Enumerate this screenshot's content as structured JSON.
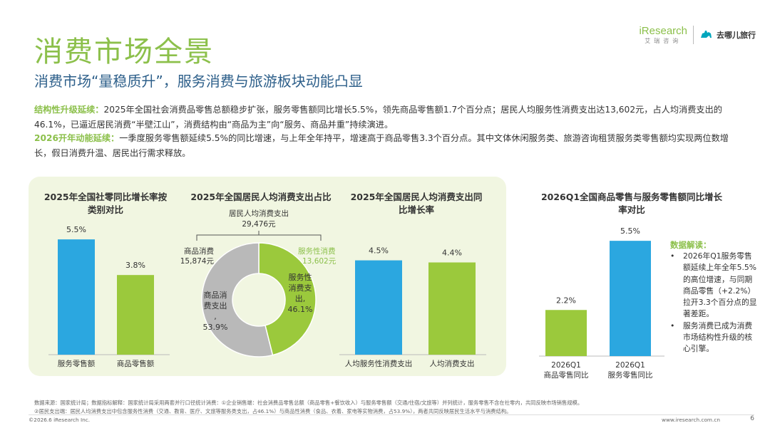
{
  "header": {
    "title": "消费市场全景",
    "subtitle": "消费市场“量稳质升”，服务消费与旅游板块动能凸显",
    "logo_ir": "iResearch",
    "logo_ir_sub": "艾瑞咨询",
    "logo_qunar": "去哪儿旅行"
  },
  "paragraphs": [
    {
      "label": "结构性升级延续：",
      "text": "2025年全国社会消费品零售总额稳步扩张，服务零售额同比增长5.5%，领先商品零售额1.7个百分点；居民人均服务性消费支出达13,602元，占人均消费支出的46.1%，已逼近居民消费“半壁江山”，消费结构由“商品为主”向“服务、商品并重”持续演进。"
    },
    {
      "label": "2026开年动能延续：",
      "text": "一季度服务零售额延续5.5%的同比增速，与上年全年持平，增速高于商品零售3.3个百分点。其中文体休闲服务类、旅游咨询租赁服务类零售额均实现两位数增长，假日消费升温、居民出行需求释放。"
    }
  ],
  "chart_data": [
    {
      "type": "bar",
      "title": "2025年全国社零同比增长率按类别对比",
      "categories": [
        "服务零售额",
        "商品零售额"
      ],
      "values": [
        5.5,
        3.8
      ],
      "value_labels": [
        "5.5%",
        "3.8%"
      ],
      "colors": [
        "#2ba7e0",
        "#9bc93c"
      ],
      "ylim": [
        0,
        7
      ]
    },
    {
      "type": "pie",
      "title": "2025年全国居民人均消费支出占比",
      "total_label": "居民人均消费支出29,476元",
      "slices": [
        {
          "name": "服务性消费",
          "amount": "13,602元",
          "inner_label": "服务性消费支出,",
          "value": 46.1,
          "value_label": "46.1%",
          "color": "#9bc93c"
        },
        {
          "name": "商品消费",
          "amount": "15,874元",
          "inner_label": "商品消费支出,",
          "value": 53.9,
          "value_label": "53.9%",
          "color": "#b9b9b9"
        }
      ]
    },
    {
      "type": "bar",
      "title": "2025年全国居民人均消费支出同比增长率",
      "categories": [
        "人均服务性消费支出",
        "人均消费支出"
      ],
      "values": [
        4.5,
        4.4
      ],
      "value_labels": [
        "4.5%",
        "4.4%"
      ],
      "colors": [
        "#2ba7e0",
        "#9bc93c"
      ],
      "ylim": [
        0,
        7
      ]
    },
    {
      "type": "bar",
      "title": "2026Q1全国商品零售与服务零售额同比增长率对比",
      "categories": [
        "2026Q1 商品零售同比",
        "2026Q1 服务零售同比"
      ],
      "values": [
        2.2,
        5.5
      ],
      "value_labels": [
        "2.2%",
        "5.5%"
      ],
      "colors": [
        "#9bc93c",
        "#2ba7e0"
      ],
      "ylim": [
        0,
        7
      ]
    }
  ],
  "notes": {
    "title": "数据解读：",
    "items": [
      "2026年Q1服务零售额延续上年全年5.5%的高位增速，与同期商品零售（+2.2%）拉开3.3个百分点的显著差距。",
      "服务消费已成为消费市场结构性升级的核心引擎。"
    ]
  },
  "footer": {
    "line1": "数据来源：国家统计局；数据指标解释：国家统计局采用两套并行口径统计消费：①企业销售端：社会消费品零售总额（商品零售+餐饮收入）与服务零售额（交通/住宿/文旅等）并列统计，服务零售不含在社零内，共同反映市场销售规模。",
    "line2": "②居民支出端：居民人均消费支出中包含服务性消费（交通、教育、医疗、文旅等服务类支出，占46.1%）与商品性消费（食品、衣着、家电等实物消费，占53.9%），两者共同反映居民生活水平与消费结构。",
    "copyright": "©2026.6 iResearch Inc.",
    "url": "www.iresearch.com.cn",
    "page": "6"
  }
}
